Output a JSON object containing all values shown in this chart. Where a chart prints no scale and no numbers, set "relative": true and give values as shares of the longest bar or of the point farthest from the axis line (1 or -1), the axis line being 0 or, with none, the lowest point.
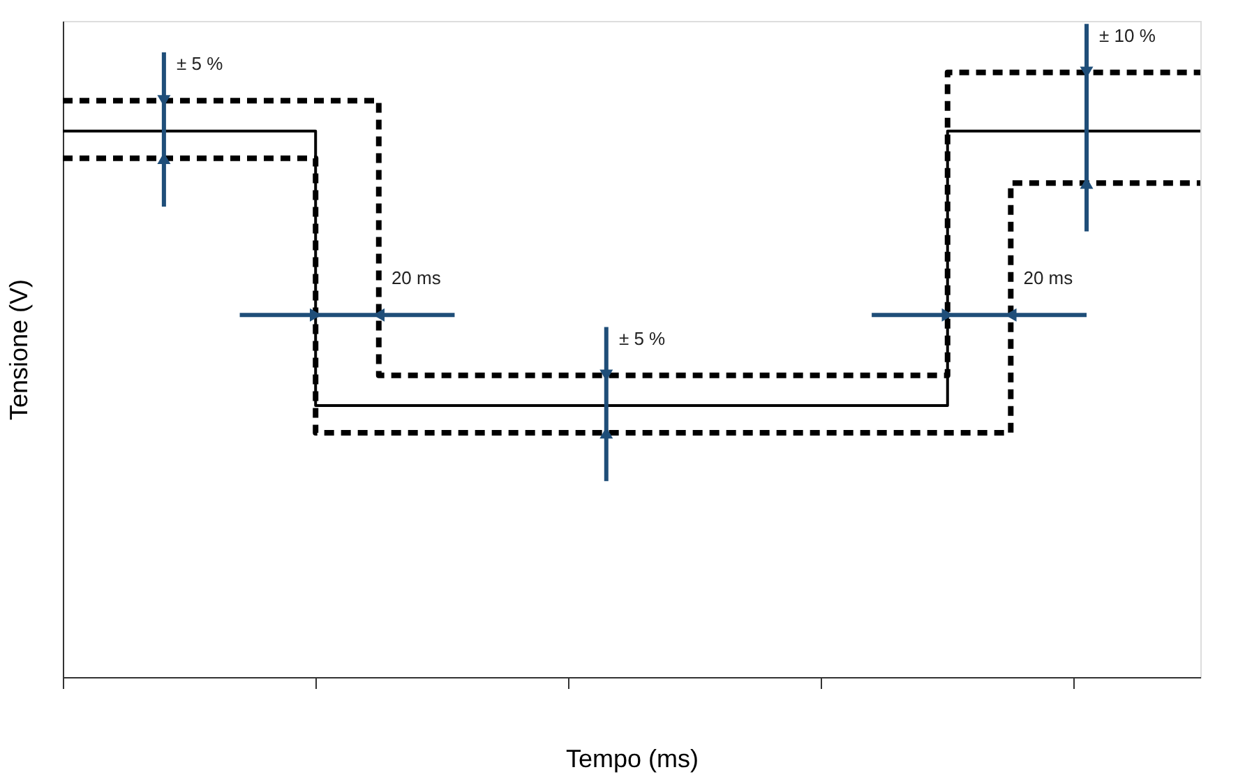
{
  "chart_data": {
    "type": "step",
    "relative": true,
    "xlabel": "Tempo (ms)",
    "ylabel": "Tensione (V)",
    "categories": [
      null,
      null,
      null,
      null,
      null,
      null,
      null,
      null,
      null,
      null,
      null,
      null,
      null,
      null,
      null,
      null,
      null,
      null,
      null
    ],
    "series": [
      {
        "color": "#000000",
        "line_style": "solid",
        "values": [
          0.903,
          0.903,
          0.903,
          0.903,
          0.449,
          0.449,
          0.449,
          0.449,
          0.449,
          0.449,
          0.449,
          0.449,
          0.449,
          0.449,
          0.903,
          0.903,
          0.903,
          0.903,
          0.903
        ]
      },
      {
        "color": "#000000",
        "line_style": "dashed",
        "values": [
          0.953,
          0.953,
          0.953,
          0.953,
          0.953,
          0.499,
          0.499,
          0.499,
          0.499,
          0.499,
          0.499,
          0.499,
          0.499,
          0.499,
          1.0,
          1.0,
          1.0,
          1.0,
          1.0
        ]
      },
      {
        "color": "#000000",
        "line_style": "dashed",
        "values": [
          0.858,
          0.858,
          0.858,
          0.858,
          0.404,
          0.404,
          0.404,
          0.404,
          0.404,
          0.404,
          0.404,
          0.404,
          0.404,
          0.404,
          0.404,
          0.817,
          0.817,
          0.817,
          0.817
        ]
      }
    ],
    "annotations": [
      "± 5 %",
      "20 ms",
      "± 5 %",
      "20 ms",
      "± 10 %"
    ],
    "grid": false,
    "marker": "none"
  }
}
